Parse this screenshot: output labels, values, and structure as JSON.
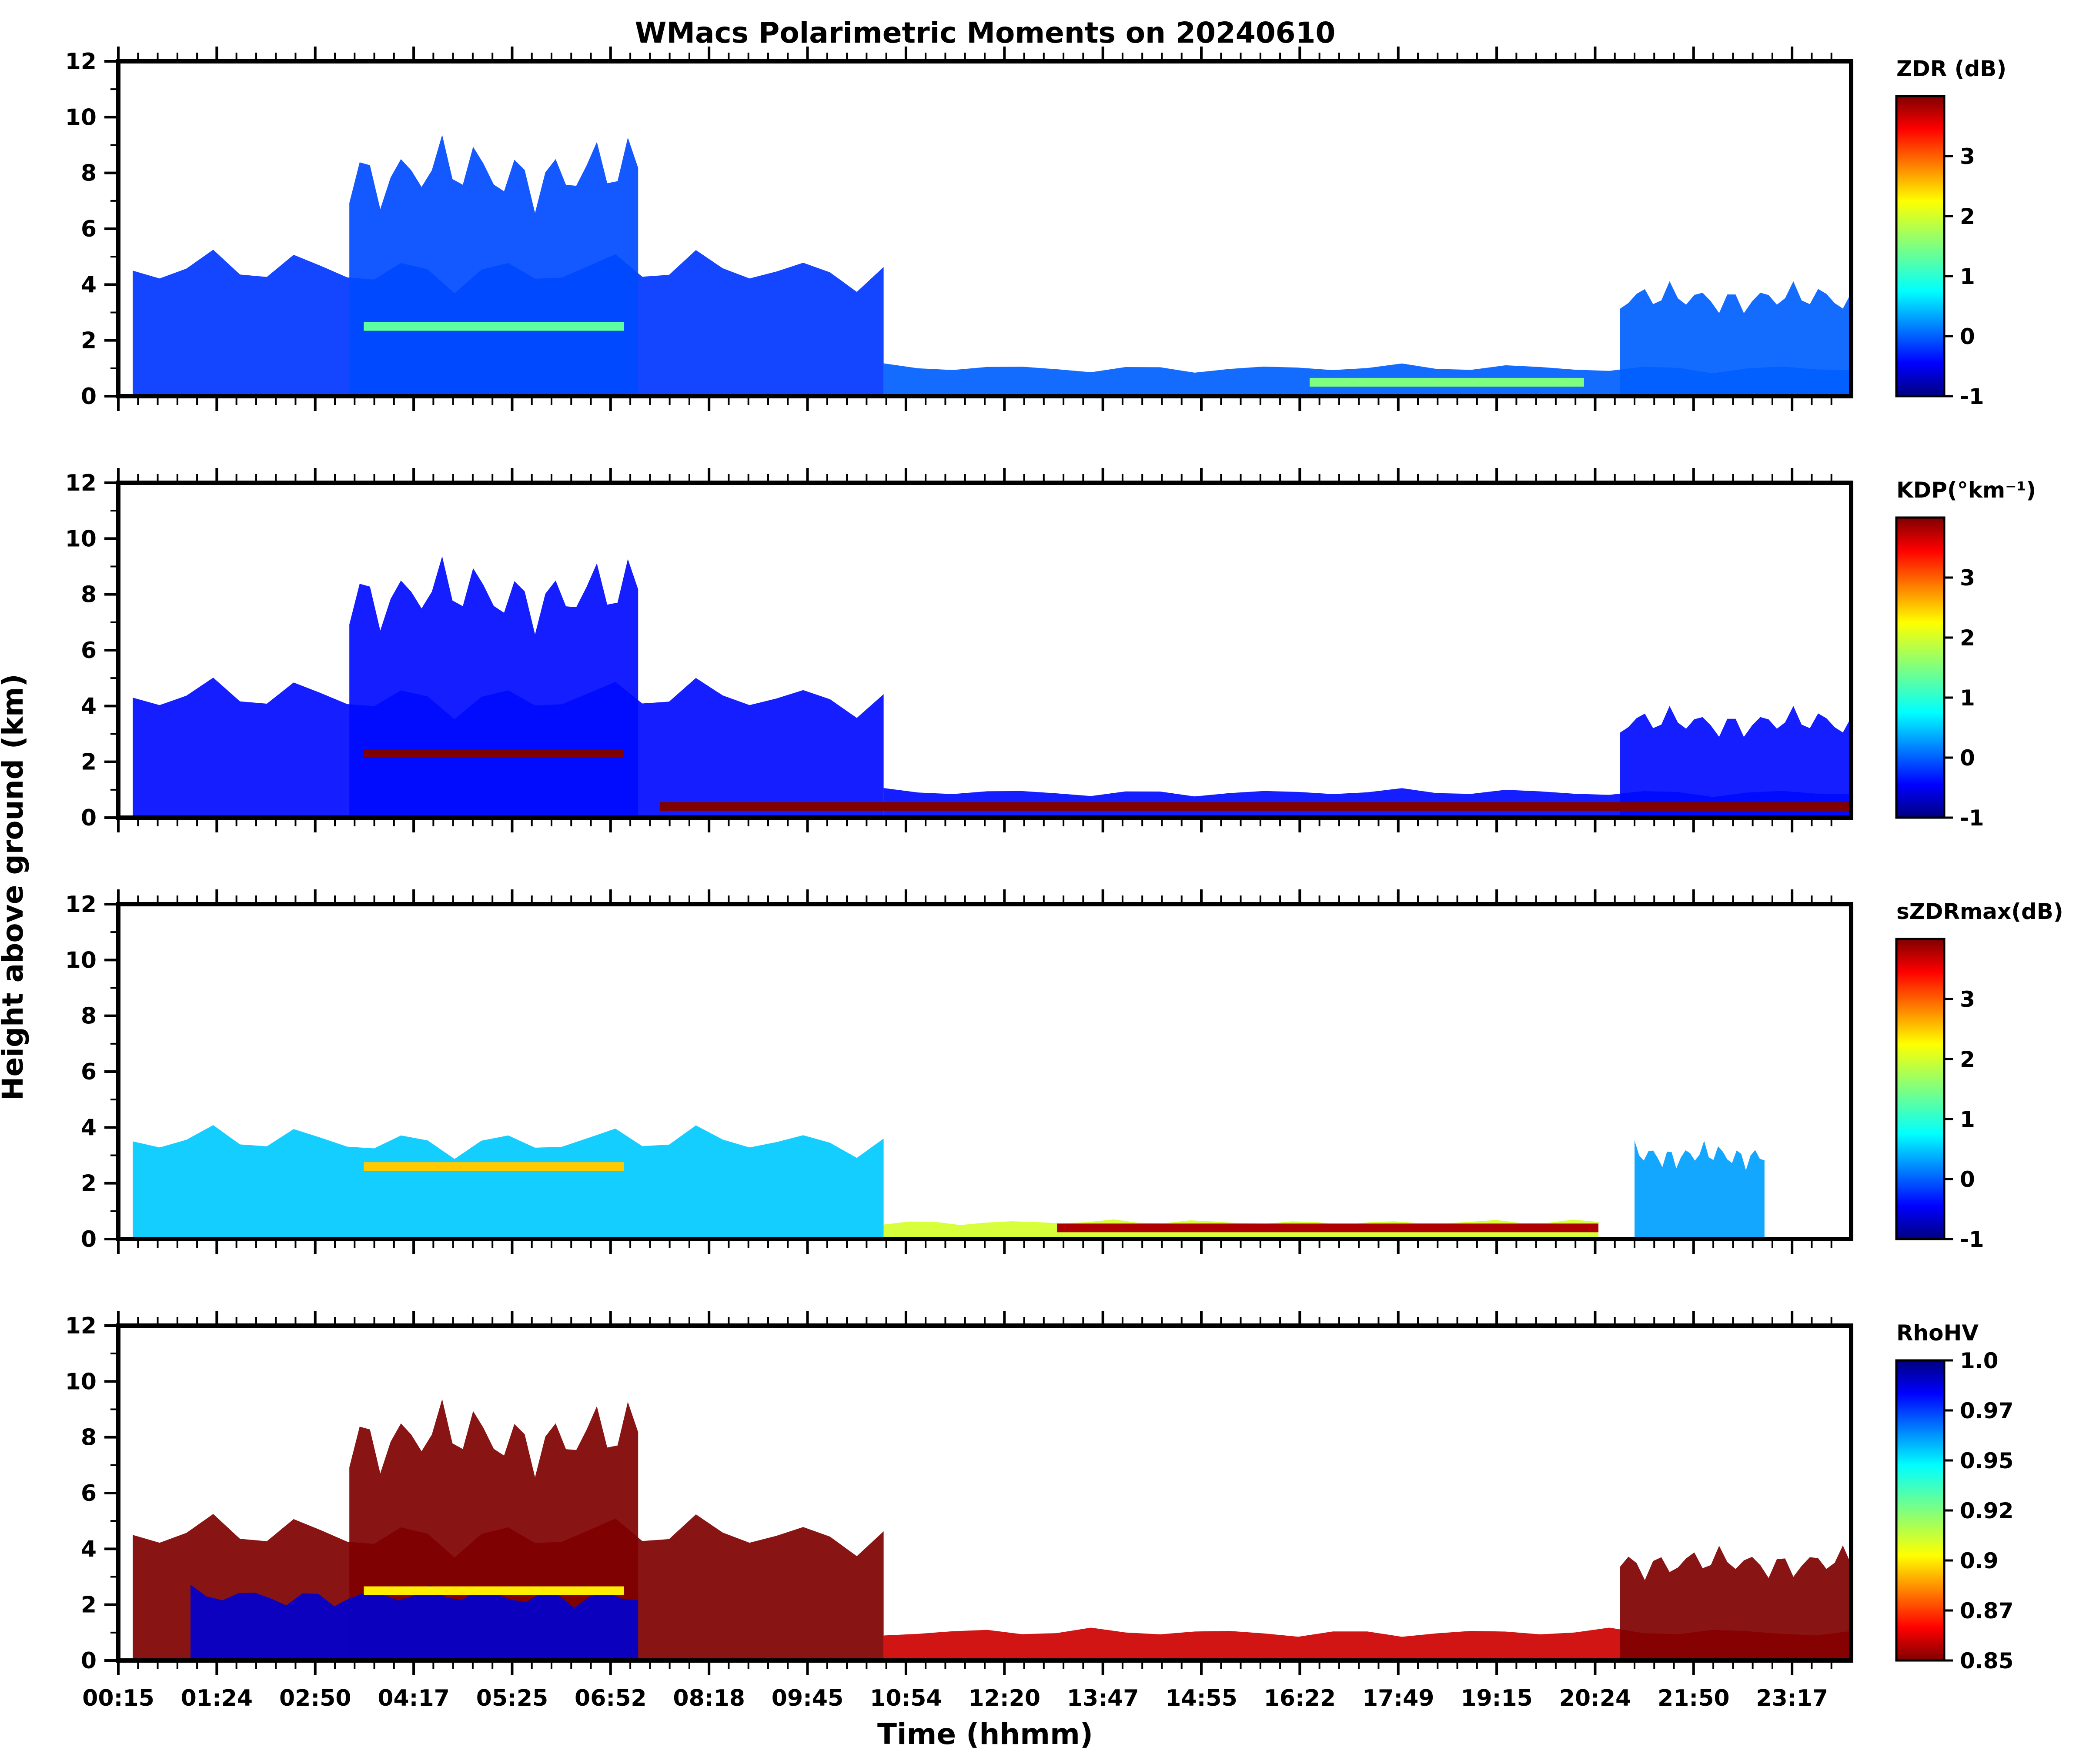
{
  "chart_data": {
    "type": "heatmap",
    "title": "WMacs Polarimetric Moments on 20240610",
    "xlabel": "Time (hhmm)",
    "ylabel": "Height above ground (km)",
    "x_tick_labels": [
      "00:15",
      "01:24",
      "02:50",
      "04:17",
      "05:25",
      "06:52",
      "08:18",
      "09:45",
      "10:54",
      "12:20",
      "13:47",
      "14:55",
      "16:22",
      "17:49",
      "19:15",
      "20:24",
      "21:50",
      "23:17"
    ],
    "ylim": [
      0,
      12
    ],
    "y_ticks": [
      0,
      2,
      4,
      6,
      8,
      10,
      12
    ],
    "panels": [
      {
        "variable": "ZDR",
        "colorbar_label": "ZDR (dB)",
        "colorbar_ticks": [
          "-1",
          "0",
          "1",
          "2",
          "3"
        ],
        "colorbar_range": [
          -1,
          4
        ],
        "colormap": "jet",
        "echo_regions": [
          {
            "t_start": 0.2,
            "t_end": 10.6,
            "top_km": 4.5,
            "value": -0.2
          },
          {
            "t_start": 3.2,
            "t_end": 7.2,
            "top_km": 8.0,
            "value": -0.1
          },
          {
            "t_start": 10.6,
            "t_end": 24.0,
            "top_km": 1.0,
            "value": 0.0
          },
          {
            "t_start": 20.8,
            "t_end": 24.0,
            "top_km": 3.5,
            "value": 0.0
          }
        ],
        "features": [
          {
            "t_start": 3.4,
            "t_end": 7.0,
            "height_km": 2.5,
            "value": 1.3
          },
          {
            "t_start": 16.5,
            "t_end": 20.3,
            "height_km": 0.5,
            "value": 1.5
          }
        ]
      },
      {
        "variable": "KDP",
        "colorbar_label": "KDP(°km⁻¹)",
        "colorbar_ticks": [
          "-1",
          "0",
          "1",
          "2",
          "3"
        ],
        "colorbar_range": [
          -1,
          4
        ],
        "colormap": "jet",
        "echo_regions": [
          {
            "t_start": 0.2,
            "t_end": 10.6,
            "top_km": 4.3,
            "value": -0.4
          },
          {
            "t_start": 3.2,
            "t_end": 7.2,
            "top_km": 8.0,
            "value": -0.4
          },
          {
            "t_start": 10.6,
            "t_end": 24.0,
            "top_km": 0.9,
            "value": -0.4
          },
          {
            "t_start": 20.8,
            "t_end": 24.0,
            "top_km": 3.4,
            "value": -0.4
          }
        ],
        "features": [
          {
            "t_start": 3.4,
            "t_end": 7.0,
            "height_km": 2.3,
            "value": 4.0
          },
          {
            "t_start": 7.5,
            "t_end": 24.0,
            "height_km": 0.4,
            "value": 4.0
          }
        ]
      },
      {
        "variable": "sZDRmax",
        "colorbar_label": "sZDRmax(dB)",
        "colorbar_ticks": [
          "-1",
          "0",
          "1",
          "2",
          "3"
        ],
        "colorbar_range": [
          -1,
          4
        ],
        "colormap": "jet",
        "echo_regions": [
          {
            "t_start": 0.2,
            "t_end": 10.6,
            "top_km": 3.5,
            "value": 0.5
          },
          {
            "t_start": 10.6,
            "t_end": 20.5,
            "top_km": 0.6,
            "value": 2.0
          },
          {
            "t_start": 21.0,
            "t_end": 22.8,
            "top_km": 3.0,
            "value": 0.3
          }
        ],
        "features": [
          {
            "t_start": 3.4,
            "t_end": 7.0,
            "height_km": 2.6,
            "value": 2.5
          },
          {
            "t_start": 13.0,
            "t_end": 20.5,
            "height_km": 0.4,
            "value": 3.8
          }
        ]
      },
      {
        "variable": "RhoHV",
        "colorbar_label": "RhoHV",
        "colorbar_ticks": [
          "0.85",
          "0.87",
          "0.9",
          "0.92",
          "0.95",
          "0.97",
          "1.0"
        ],
        "colorbar_range": [
          0.85,
          1.0
        ],
        "colormap": "jet_r",
        "echo_regions": [
          {
            "t_start": 0.2,
            "t_end": 10.6,
            "top_km": 4.5,
            "value": 0.85
          },
          {
            "t_start": 3.2,
            "t_end": 7.2,
            "top_km": 8.0,
            "value": 0.85
          },
          {
            "t_start": 1.0,
            "t_end": 7.2,
            "top_km": 2.3,
            "value": 0.99
          },
          {
            "t_start": 10.6,
            "t_end": 24.0,
            "top_km": 1.0,
            "value": 0.86
          },
          {
            "t_start": 20.8,
            "t_end": 24.0,
            "top_km": 3.5,
            "value": 0.85
          }
        ],
        "features": [
          {
            "t_start": 3.4,
            "t_end": 7.0,
            "height_km": 2.5,
            "value": 0.9
          }
        ]
      }
    ]
  }
}
